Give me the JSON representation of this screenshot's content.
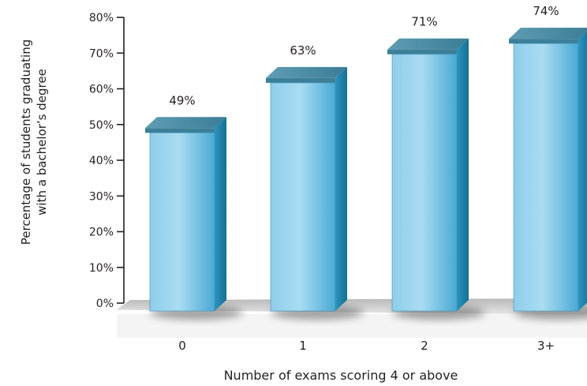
{
  "chart_data": {
    "type": "bar",
    "categories": [
      "0",
      "1",
      "2",
      "3+"
    ],
    "values": [
      49,
      63,
      71,
      74
    ],
    "value_labels": [
      "49%",
      "63%",
      "71%",
      "74%"
    ],
    "ylabel_lines": [
      "Percentage of students graduating",
      "with a bachelor’s degree"
    ],
    "xlabel": "Number of exams scoring 4 or above",
    "ylim": [
      0,
      80
    ],
    "yticks": [
      "0%",
      "10%",
      "20%",
      "30%",
      "40%",
      "50%",
      "60%",
      "70%",
      "80%"
    ],
    "grid": false,
    "style": "3d-bars",
    "colors": {
      "bar_front_light": "#a9dcf2",
      "bar_front_dark": "#3fa3d0",
      "bar_side": "#1f7fa4",
      "bar_top": "#4f8ea6",
      "floor": "#c9c9c9",
      "axis": "#231f20"
    }
  }
}
